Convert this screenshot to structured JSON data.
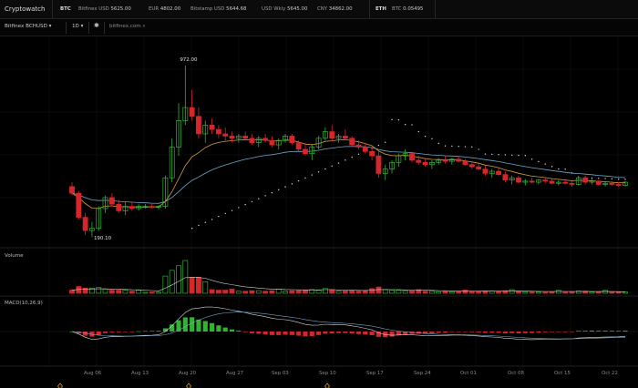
{
  "topbar": {
    "brand": "Cryptowatch",
    "btc_label": "BTC",
    "tickers": [
      {
        "exchange": "Bitfinex USD",
        "value": "5625.00"
      },
      {
        "exchange": "EUR",
        "value": "4802.00"
      },
      {
        "exchange": "Bitstamp USD",
        "value": "5644.68"
      },
      {
        "exchange": "USD Wkly",
        "value": "5645.00"
      },
      {
        "exchange": "CNY",
        "value": "34862.00"
      }
    ],
    "eth_label": "ETH",
    "eth_ticker": {
      "exchange": "BTC",
      "value": "0.05495"
    }
  },
  "toolbar": {
    "market": "Bitfinex BCHUSD",
    "interval": "1D",
    "source": "bitfinex.com"
  },
  "panes": {
    "volume_label": "Volume",
    "macd_label": "MACD(10,26,9)"
  },
  "colors": {
    "up": "#2fb52f",
    "down": "#d6262c",
    "ema_fast": "#d39a3c",
    "ema_slow": "#6fa6c9",
    "sar": "#d8d8d8"
  },
  "chart_data": {
    "type": "candlestick",
    "x_tick_labels": [
      "Aug 06",
      "Aug 13",
      "Aug 20",
      "Aug 27",
      "Sep 03",
      "Sep 10",
      "Sep 17",
      "Sep 24",
      "Oct 01",
      "Oct 08",
      "Oct 15",
      "Oct 22"
    ],
    "price_labels": {
      "high": "972.00",
      "low": "190.10"
    },
    "candles": [
      {
        "o": 420,
        "h": 440,
        "l": 380,
        "c": 390
      },
      {
        "o": 390,
        "h": 400,
        "l": 270,
        "c": 280
      },
      {
        "o": 280,
        "h": 300,
        "l": 200,
        "c": 220
      },
      {
        "o": 220,
        "h": 260,
        "l": 190.1,
        "c": 230
      },
      {
        "o": 230,
        "h": 330,
        "l": 220,
        "c": 320
      },
      {
        "o": 320,
        "h": 380,
        "l": 300,
        "c": 370
      },
      {
        "o": 370,
        "h": 390,
        "l": 330,
        "c": 340
      },
      {
        "o": 340,
        "h": 360,
        "l": 300,
        "c": 310
      },
      {
        "o": 310,
        "h": 350,
        "l": 290,
        "c": 330
      },
      {
        "o": 330,
        "h": 350,
        "l": 310,
        "c": 320
      },
      {
        "o": 320,
        "h": 340,
        "l": 310,
        "c": 330
      },
      {
        "o": 330,
        "h": 340,
        "l": 320,
        "c": 330
      },
      {
        "o": 330,
        "h": 345,
        "l": 320,
        "c": 325
      },
      {
        "o": 325,
        "h": 335,
        "l": 315,
        "c": 330
      },
      {
        "o": 330,
        "h": 470,
        "l": 320,
        "c": 460
      },
      {
        "o": 460,
        "h": 640,
        "l": 440,
        "c": 600
      },
      {
        "o": 600,
        "h": 800,
        "l": 560,
        "c": 720
      },
      {
        "o": 720,
        "h": 972,
        "l": 700,
        "c": 780
      },
      {
        "o": 780,
        "h": 860,
        "l": 720,
        "c": 740
      },
      {
        "o": 740,
        "h": 780,
        "l": 640,
        "c": 660
      },
      {
        "o": 660,
        "h": 720,
        "l": 620,
        "c": 700
      },
      {
        "o": 700,
        "h": 730,
        "l": 660,
        "c": 680
      },
      {
        "o": 680,
        "h": 700,
        "l": 640,
        "c": 660
      },
      {
        "o": 660,
        "h": 690,
        "l": 630,
        "c": 650
      },
      {
        "o": 650,
        "h": 670,
        "l": 620,
        "c": 640
      },
      {
        "o": 640,
        "h": 660,
        "l": 620,
        "c": 650
      },
      {
        "o": 650,
        "h": 670,
        "l": 630,
        "c": 640
      },
      {
        "o": 640,
        "h": 660,
        "l": 610,
        "c": 620
      },
      {
        "o": 620,
        "h": 650,
        "l": 600,
        "c": 640
      },
      {
        "o": 640,
        "h": 660,
        "l": 620,
        "c": 630
      },
      {
        "o": 630,
        "h": 650,
        "l": 600,
        "c": 610
      },
      {
        "o": 610,
        "h": 640,
        "l": 590,
        "c": 630
      },
      {
        "o": 630,
        "h": 660,
        "l": 620,
        "c": 650
      },
      {
        "o": 650,
        "h": 660,
        "l": 610,
        "c": 620
      },
      {
        "o": 620,
        "h": 630,
        "l": 580,
        "c": 590
      },
      {
        "o": 590,
        "h": 620,
        "l": 560,
        "c": 570
      },
      {
        "o": 570,
        "h": 610,
        "l": 540,
        "c": 600
      },
      {
        "o": 600,
        "h": 650,
        "l": 590,
        "c": 640
      },
      {
        "o": 640,
        "h": 690,
        "l": 630,
        "c": 670
      },
      {
        "o": 670,
        "h": 700,
        "l": 630,
        "c": 640
      },
      {
        "o": 640,
        "h": 660,
        "l": 620,
        "c": 650
      },
      {
        "o": 650,
        "h": 680,
        "l": 630,
        "c": 640
      },
      {
        "o": 640,
        "h": 650,
        "l": 600,
        "c": 610
      },
      {
        "o": 610,
        "h": 630,
        "l": 590,
        "c": 600
      },
      {
        "o": 600,
        "h": 620,
        "l": 570,
        "c": 580
      },
      {
        "o": 580,
        "h": 600,
        "l": 540,
        "c": 560
      },
      {
        "o": 560,
        "h": 580,
        "l": 460,
        "c": 480
      },
      {
        "o": 480,
        "h": 520,
        "l": 450,
        "c": 500
      },
      {
        "o": 500,
        "h": 540,
        "l": 480,
        "c": 530
      },
      {
        "o": 530,
        "h": 570,
        "l": 510,
        "c": 560
      },
      {
        "o": 560,
        "h": 590,
        "l": 540,
        "c": 570
      },
      {
        "o": 570,
        "h": 580,
        "l": 530,
        "c": 540
      },
      {
        "o": 540,
        "h": 560,
        "l": 520,
        "c": 530
      },
      {
        "o": 530,
        "h": 550,
        "l": 510,
        "c": 520
      },
      {
        "o": 520,
        "h": 540,
        "l": 500,
        "c": 530
      },
      {
        "o": 530,
        "h": 550,
        "l": 520,
        "c": 540
      },
      {
        "o": 540,
        "h": 560,
        "l": 525,
        "c": 535
      },
      {
        "o": 535,
        "h": 550,
        "l": 520,
        "c": 545
      },
      {
        "o": 545,
        "h": 560,
        "l": 530,
        "c": 535
      },
      {
        "o": 535,
        "h": 545,
        "l": 515,
        "c": 520
      },
      {
        "o": 520,
        "h": 535,
        "l": 500,
        "c": 510
      },
      {
        "o": 510,
        "h": 525,
        "l": 495,
        "c": 500
      },
      {
        "o": 500,
        "h": 515,
        "l": 470,
        "c": 480
      },
      {
        "o": 480,
        "h": 500,
        "l": 460,
        "c": 490
      },
      {
        "o": 490,
        "h": 505,
        "l": 470,
        "c": 475
      },
      {
        "o": 475,
        "h": 490,
        "l": 440,
        "c": 450
      },
      {
        "o": 450,
        "h": 470,
        "l": 430,
        "c": 460
      },
      {
        "o": 460,
        "h": 470,
        "l": 435,
        "c": 440
      },
      {
        "o": 440,
        "h": 455,
        "l": 425,
        "c": 445
      },
      {
        "o": 445,
        "h": 460,
        "l": 435,
        "c": 440
      },
      {
        "o": 440,
        "h": 455,
        "l": 430,
        "c": 450
      },
      {
        "o": 450,
        "h": 460,
        "l": 435,
        "c": 445
      },
      {
        "o": 445,
        "h": 455,
        "l": 430,
        "c": 435
      },
      {
        "o": 435,
        "h": 450,
        "l": 425,
        "c": 440
      },
      {
        "o": 440,
        "h": 455,
        "l": 430,
        "c": 435
      },
      {
        "o": 435,
        "h": 445,
        "l": 420,
        "c": 430
      },
      {
        "o": 430,
        "h": 470,
        "l": 425,
        "c": 460
      },
      {
        "o": 460,
        "h": 470,
        "l": 430,
        "c": 440
      },
      {
        "o": 440,
        "h": 455,
        "l": 430,
        "c": 445
      },
      {
        "o": 445,
        "h": 450,
        "l": 425,
        "c": 430
      },
      {
        "o": 430,
        "h": 445,
        "l": 420,
        "c": 435
      },
      {
        "o": 435,
        "h": 445,
        "l": 425,
        "c": 430
      },
      {
        "o": 430,
        "h": 440,
        "l": 420,
        "c": 425
      },
      {
        "o": 425,
        "h": 445,
        "l": 420,
        "c": 440
      }
    ]
  }
}
